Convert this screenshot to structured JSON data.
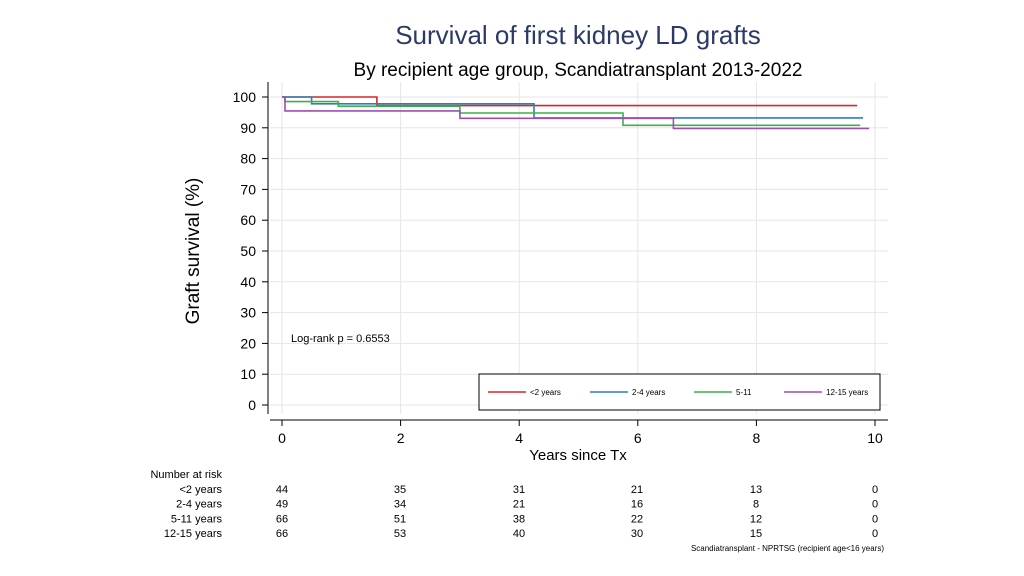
{
  "chart_data": {
    "type": "line",
    "title": "Survival of first kidney LD grafts",
    "subtitle": "By recipient age group, Scandiatransplant 2013-2022",
    "xlabel": "Years since Tx",
    "ylabel": "Graft survival (%)",
    "xlim": [
      0,
      10
    ],
    "ylim": [
      0,
      100
    ],
    "xticks": [
      "0",
      "2",
      "4",
      "6",
      "8",
      "10"
    ],
    "yticks": [
      "0",
      "10",
      "20",
      "30",
      "40",
      "50",
      "60",
      "70",
      "80",
      "90",
      "100"
    ],
    "annotation": "Log-rank p = 0.6553",
    "legend_placement": "bottom-right",
    "series": [
      {
        "name": "<2 years",
        "color": "#d62728",
        "x": [
          0,
          1.6,
          1.6,
          9.7
        ],
        "y": [
          100,
          100,
          97.2,
          97.2
        ]
      },
      {
        "name": "2-4 years",
        "color": "#2e7fb8",
        "x": [
          0,
          0.5,
          0.5,
          4.25,
          4.25,
          9.8
        ],
        "y": [
          100,
          100,
          97.8,
          97.8,
          93.2,
          93.2
        ]
      },
      {
        "name": "5-11",
        "color": "#3cb04a",
        "x": [
          0,
          0.05,
          0.05,
          0.95,
          0.95,
          3.0,
          3.0,
          5.75,
          5.75,
          9.75
        ],
        "y": [
          100,
          100,
          98.5,
          98.5,
          97.0,
          97.0,
          94.8,
          94.8,
          90.8,
          90.8
        ]
      },
      {
        "name": "12-15 years",
        "color": "#9b4fb0",
        "x": [
          0,
          0.05,
          0.05,
          3.0,
          3.0,
          6.6,
          6.6,
          9.9
        ],
        "y": [
          100,
          100,
          95.5,
          95.5,
          93.1,
          93.1,
          89.8,
          89.8
        ]
      }
    ]
  },
  "risk_table": {
    "header": "Number at risk",
    "rows": [
      {
        "label": "<2 years",
        "values": [
          "44",
          "35",
          "31",
          "21",
          "13",
          "0"
        ]
      },
      {
        "label": "2-4 years",
        "values": [
          "49",
          "34",
          "21",
          "16",
          "8",
          "0"
        ]
      },
      {
        "label": "5-11 years",
        "values": [
          "66",
          "51",
          "38",
          "22",
          "12",
          "0"
        ]
      },
      {
        "label": "12-15 years",
        "values": [
          "66",
          "53",
          "40",
          "30",
          "15",
          "0"
        ]
      }
    ]
  },
  "footnote": "Scandiatransplant - NPRTSG (recipient age<16 years)",
  "colors": {
    "title": "#2b3a67",
    "grid": "#e6e6e6"
  }
}
